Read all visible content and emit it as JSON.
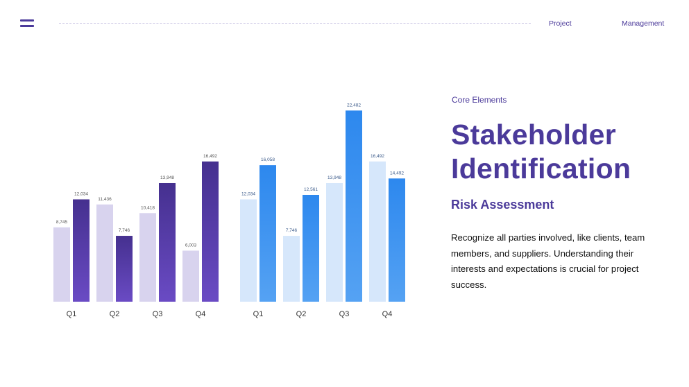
{
  "header": {
    "menu_icon": "hamburger-icon",
    "nav": [
      "Project",
      "Management"
    ]
  },
  "content": {
    "subtitle": "Core Elements",
    "title_lines": [
      "Stakeholder",
      "Identification"
    ],
    "heading": "Risk Assessment",
    "body": "Recognize all parties involved, like clients, team members, and suppliers. Understanding their interests and expectations is crucial for project success."
  },
  "chart_data": [
    {
      "type": "bar",
      "categories": [
        "Q1",
        "Q2",
        "Q3",
        "Q4"
      ],
      "series": [
        {
          "values": [
            8745,
            11436,
            10418,
            6003
          ],
          "color": "#d8d3ee"
        },
        {
          "values": [
            12034,
            7746,
            13948,
            16492
          ],
          "color": "#4b3399"
        }
      ],
      "data_labels": true,
      "grid": false
    },
    {
      "type": "bar",
      "categories": [
        "Q1",
        "Q2",
        "Q3",
        "Q4"
      ],
      "series": [
        {
          "values": [
            12034,
            7746,
            13948,
            16492
          ],
          "color": "#d6e7fb"
        },
        {
          "values": [
            16058,
            12561,
            22482,
            14492
          ],
          "color": "#2f8cf0"
        }
      ],
      "data_labels": true,
      "grid": false
    }
  ]
}
